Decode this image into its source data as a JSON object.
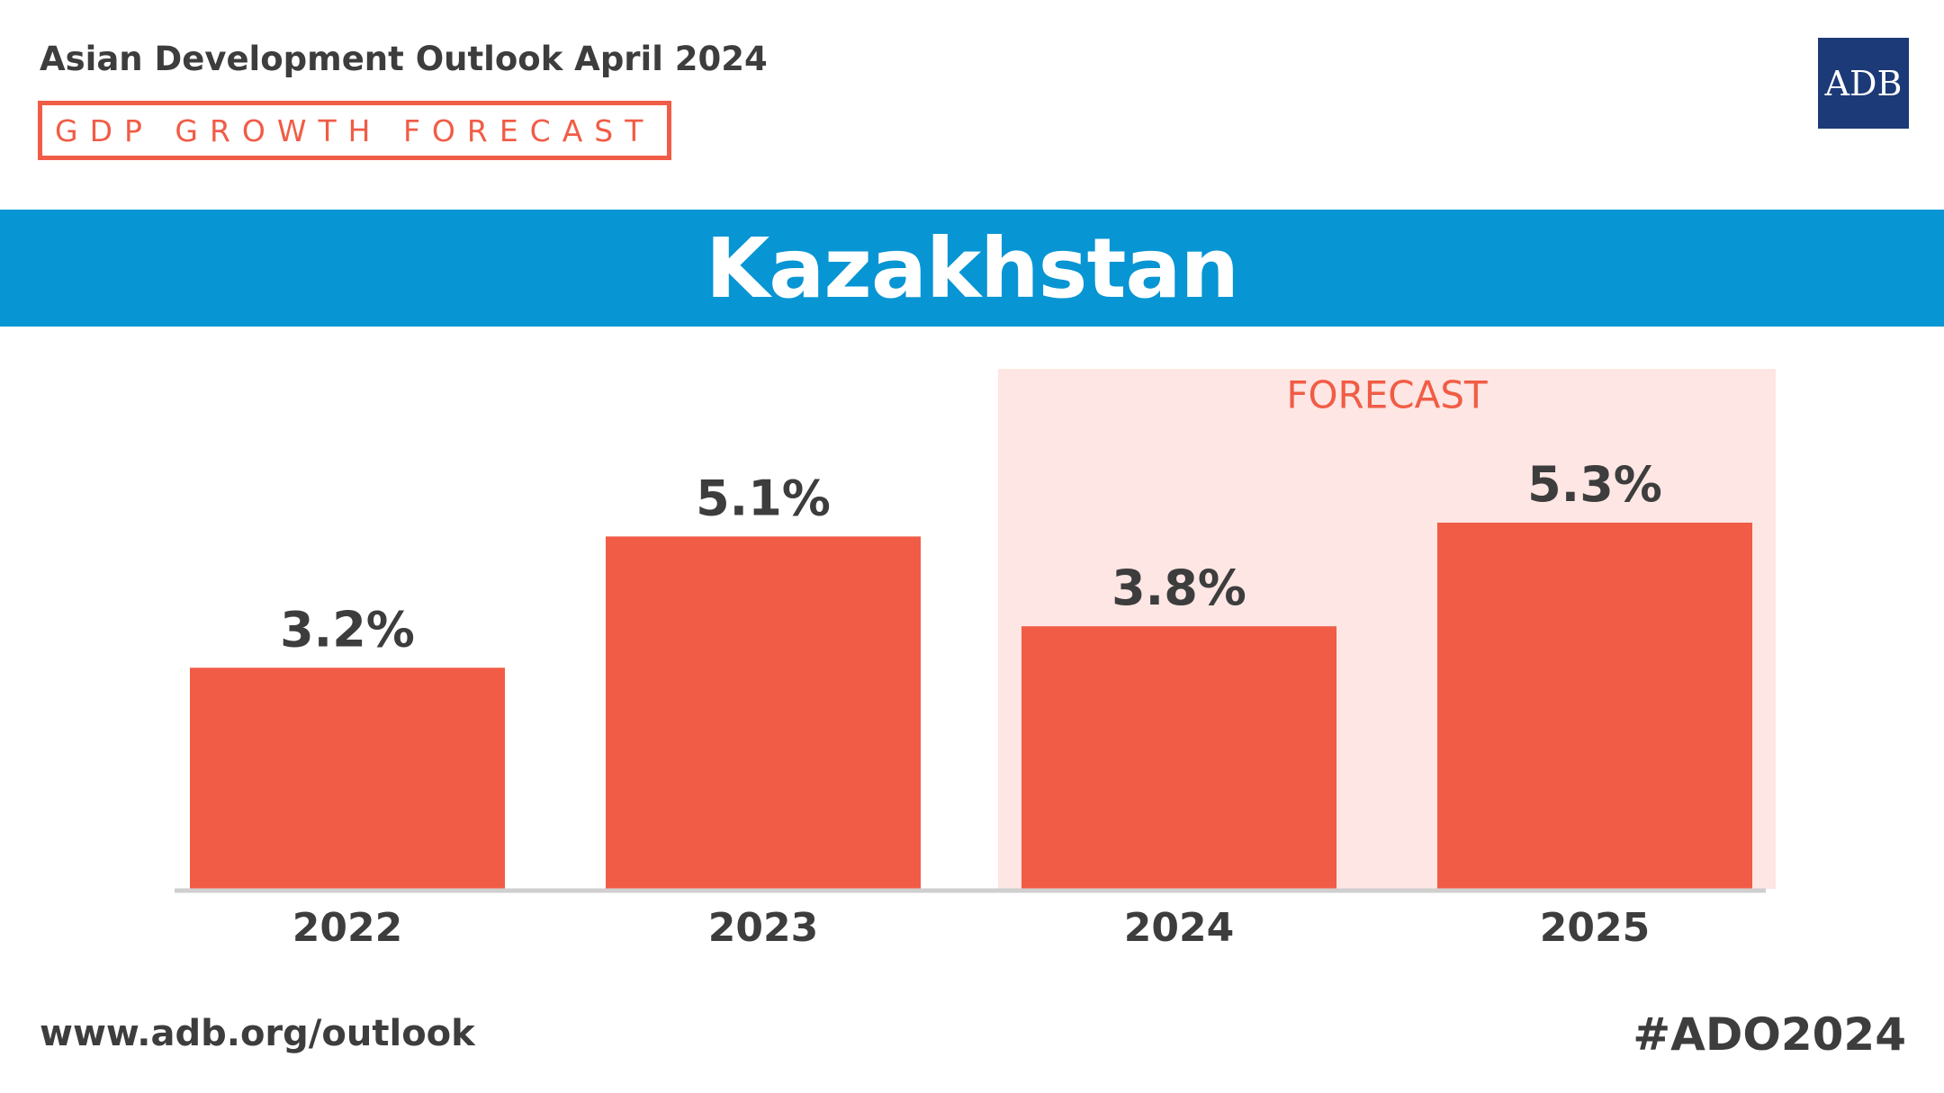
{
  "header": {
    "publication": "Asian Development Outlook April 2024",
    "subtitle": "GDP GROWTH FORECAST",
    "logo_text": "ADB"
  },
  "banner": {
    "country": "Kazakhstan"
  },
  "chart_data": {
    "type": "bar",
    "categories": [
      "2022",
      "2023",
      "2024",
      "2025"
    ],
    "values": [
      3.2,
      5.1,
      3.8,
      5.3
    ],
    "data_labels": [
      "3.2%",
      "5.1%",
      "3.8%",
      "5.3%"
    ],
    "forecast_categories": [
      "2024",
      "2025"
    ],
    "forecast_label": "FORECAST",
    "ylim": [
      0,
      5.3
    ],
    "title": "",
    "xlabel": "",
    "ylabel": ""
  },
  "footer": {
    "url": "www.adb.org/outlook",
    "hashtag": "#ADO2024"
  },
  "colors": {
    "bar": "#f15c46",
    "forecast_bg": "#fde6e3",
    "banner": "#0795d3",
    "logo_bg": "#1c3a78",
    "text": "#3d3d3d",
    "baseline": "#cfcfcf"
  }
}
